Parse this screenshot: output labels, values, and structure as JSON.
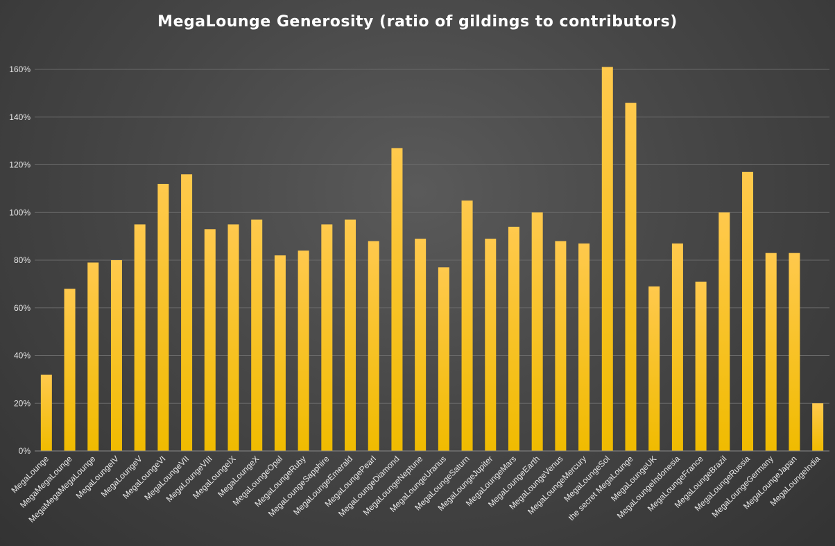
{
  "chart_data": {
    "type": "bar",
    "title": "MegaLounge Generosity (ratio of gildings to contributors)",
    "xlabel": "",
    "ylabel": "",
    "ylim": [
      0,
      160
    ],
    "yticks": [
      "0%",
      "20%",
      "40%",
      "60%",
      "80%",
      "100%",
      "120%",
      "140%",
      "160%"
    ],
    "y_unit": "%",
    "grid": true,
    "legend": "none",
    "colors": {
      "bar_top": "#ffc94d",
      "bar_bottom": "#f2bd00",
      "background": "#474747"
    },
    "categories": [
      "MegaLounge",
      "MegaMegaLounge",
      "MegaMegaMegaLounge",
      "MegaLoungeIV",
      "MegaLoungeV",
      "MegaLoungeVI",
      "MegaLoungeVII",
      "MegaLoungeVIII",
      "MegaLoungeIX",
      "MegaLoungeX",
      "MegaLoungeOpal",
      "MegaLoungeRuby",
      "MegaLoungeSapphire",
      "MegaLoungeEmerald",
      "MegaLoungePearl",
      "MegaLoungeDiamond",
      "MegaLoungeNeptune",
      "MegaLoungeUranus",
      "MegaLoungeSaturn",
      "MegaLoungeJupiter",
      "MegaLoungeMars",
      "MegaLoungeEarth",
      "MegaLoungeVenus",
      "MegaLoungeMercury",
      "MegaLoungeSol",
      "the secret MegaLounge",
      "MegaLoungeUK",
      "MegaLoungeIndonesia",
      "MegaLoungeFrance",
      "MegaLoungeBrazil",
      "MegaLoungeRussia",
      "MegaLoungeGermany",
      "MegaLoungeJapan",
      "MegaLoungeIndia"
    ],
    "values": [
      32,
      68,
      79,
      80,
      95,
      112,
      116,
      93,
      95,
      97,
      82,
      84,
      95,
      97,
      88,
      127,
      89,
      77,
      105,
      89,
      94,
      100,
      88,
      87,
      161,
      146,
      69,
      87,
      71,
      100,
      117,
      83,
      83,
      20
    ]
  }
}
